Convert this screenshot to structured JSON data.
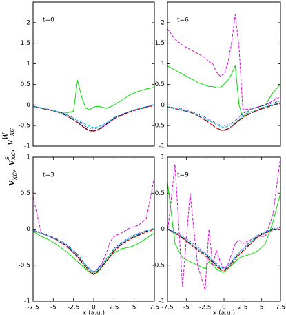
{
  "y_label": [
    "v",
    "xc",
    ", v",
    "s",
    "xc",
    ", v",
    "W",
    "xc"
  ],
  "chart_data": [
    {
      "type": "line",
      "annotation": "t=0",
      "xlim": [
        -7.5,
        7.5
      ],
      "ylim": [
        -1,
        2.5
      ],
      "yticks": [
        -1,
        -0.5,
        0,
        0.5,
        1,
        1.5,
        2
      ],
      "x": [
        -7.5,
        -6.5,
        -5.5,
        -4.5,
        -3.5,
        -2.5,
        -2,
        -1.5,
        -1,
        -0.5,
        0,
        0.5,
        1,
        1.5,
        2,
        2.5,
        3.5,
        4.5,
        5.5,
        6.5,
        7.5
      ],
      "series": [
        {
          "color": "#00dd00",
          "style": "solid",
          "values": [
            -0.03,
            -0.08,
            -0.12,
            -0.17,
            -0.2,
            -0.15,
            0.6,
            0.2,
            -0.07,
            -0.12,
            -0.05,
            -0.03,
            -0.05,
            -0.08,
            -0.05,
            0.0,
            0.12,
            0.25,
            0.33,
            0.39,
            0.43
          ]
        },
        {
          "color": "#dd00dd",
          "style": "dashed",
          "values": [
            -0.03,
            -0.08,
            -0.12,
            -0.17,
            -0.25,
            -0.36,
            -0.42,
            -0.5,
            -0.57,
            -0.62,
            -0.63,
            -0.6,
            -0.55,
            -0.48,
            -0.41,
            -0.33,
            -0.24,
            -0.16,
            -0.1,
            -0.05,
            0.0
          ]
        },
        {
          "color": "#000000",
          "style": "dashdot",
          "values": [
            -0.03,
            -0.08,
            -0.12,
            -0.17,
            -0.25,
            -0.36,
            -0.42,
            -0.5,
            -0.57,
            -0.62,
            -0.63,
            -0.6,
            -0.55,
            -0.48,
            -0.41,
            -0.33,
            -0.24,
            -0.16,
            -0.1,
            -0.05,
            0.0
          ]
        },
        {
          "color": "#ee0000",
          "style": "dashed",
          "values": [
            -0.03,
            -0.08,
            -0.12,
            -0.17,
            -0.25,
            -0.36,
            -0.43,
            -0.51,
            -0.58,
            -0.63,
            -0.64,
            -0.61,
            -0.56,
            -0.49,
            -0.42,
            -0.34,
            -0.25,
            -0.17,
            -0.11,
            -0.06,
            -0.01
          ]
        },
        {
          "color": "#0000ee",
          "style": "dotted",
          "values": [
            -0.03,
            -0.07,
            -0.11,
            -0.15,
            -0.22,
            -0.32,
            -0.38,
            -0.45,
            -0.52,
            -0.56,
            -0.58,
            -0.56,
            -0.52,
            -0.46,
            -0.4,
            -0.32,
            -0.23,
            -0.15,
            -0.09,
            -0.04,
            0.01
          ]
        },
        {
          "color": "#00cccc",
          "style": "dashed",
          "values": [
            -0.02,
            -0.07,
            -0.11,
            -0.16,
            -0.24,
            -0.33,
            -0.38,
            -0.42,
            -0.47,
            -0.52,
            -0.55,
            -0.53,
            -0.49,
            -0.44,
            -0.38,
            -0.3,
            -0.22,
            -0.15,
            -0.09,
            -0.04,
            0.0
          ]
        }
      ]
    },
    {
      "type": "line",
      "annotation": "t=6",
      "xlim": [
        -7.5,
        7.5
      ],
      "ylim": [
        -1,
        2.5
      ],
      "yticks": [
        -1,
        -0.5,
        0,
        0.5,
        1,
        1.5,
        2
      ],
      "x": [
        -7.5,
        -6.5,
        -5.5,
        -4.5,
        -3.5,
        -2.5,
        -2,
        -1.5,
        -1,
        -0.5,
        0,
        0.5,
        1,
        1.5,
        2,
        2.5,
        3.5,
        4.5,
        5.5,
        6.5,
        7.5
      ],
      "series": [
        {
          "color": "#00dd00",
          "style": "solid",
          "values": [
            0.95,
            0.85,
            0.75,
            0.65,
            0.55,
            0.48,
            0.45,
            0.45,
            0.42,
            0.42,
            0.5,
            0.6,
            0.75,
            0.95,
            0.0,
            -0.3,
            -0.1,
            -0.05,
            0.0,
            0.3,
            0.5
          ]
        },
        {
          "color": "#dd00dd",
          "style": "dashed",
          "values": [
            1.85,
            1.6,
            1.45,
            1.35,
            1.25,
            1.15,
            1.05,
            1.0,
            0.8,
            0.7,
            0.75,
            1.0,
            1.5,
            2.2,
            1.4,
            -0.1,
            -0.1,
            -0.05,
            0.0,
            0.1,
            0.2
          ]
        },
        {
          "color": "#000000",
          "style": "dashdot",
          "values": [
            -0.05,
            -0.09,
            -0.13,
            -0.18,
            -0.26,
            -0.36,
            -0.42,
            -0.49,
            -0.55,
            -0.6,
            -0.61,
            -0.58,
            -0.52,
            -0.45,
            -0.37,
            -0.3,
            -0.2,
            -0.12,
            -0.06,
            0.0,
            0.05
          ]
        },
        {
          "color": "#ee0000",
          "style": "dashed",
          "values": [
            -0.05,
            -0.09,
            -0.13,
            -0.18,
            -0.26,
            -0.37,
            -0.43,
            -0.5,
            -0.56,
            -0.61,
            -0.62,
            -0.59,
            -0.53,
            -0.46,
            -0.38,
            -0.31,
            -0.21,
            -0.13,
            -0.07,
            -0.01,
            0.04
          ]
        },
        {
          "color": "#0000ee",
          "style": "dotted",
          "values": [
            -0.04,
            -0.07,
            -0.1,
            -0.15,
            -0.22,
            -0.3,
            -0.35,
            -0.4,
            -0.45,
            -0.49,
            -0.5,
            -0.48,
            -0.44,
            -0.38,
            -0.3,
            -0.2,
            -0.12,
            -0.05,
            0.0,
            0.05,
            0.1
          ]
        },
        {
          "color": "#00cccc",
          "style": "dashed",
          "values": [
            -0.04,
            -0.08,
            -0.12,
            -0.17,
            -0.24,
            -0.33,
            -0.38,
            -0.43,
            -0.48,
            -0.52,
            -0.54,
            -0.52,
            -0.48,
            -0.42,
            -0.35,
            -0.27,
            -0.17,
            -0.1,
            -0.04,
            0.01,
            0.06
          ]
        }
      ]
    },
    {
      "type": "line",
      "annotation": "t=3",
      "xlim": [
        -7.5,
        7.5
      ],
      "ylim": [
        -1,
        1
      ],
      "yticks": [
        -1,
        -0.5,
        0,
        0.5,
        1
      ],
      "xticks": [
        -7.5,
        -5,
        -2.5,
        0,
        2.5,
        5,
        7.5
      ],
      "xlabel": "x (a.u.)",
      "x": [
        -7.5,
        -6.5,
        -5.5,
        -4.5,
        -3.5,
        -2.5,
        -2,
        -1.5,
        -1,
        -0.5,
        0,
        0.5,
        1,
        1.5,
        2,
        2.5,
        3.5,
        4.5,
        5.5,
        6.5,
        7.5
      ],
      "series": [
        {
          "color": "#00dd00",
          "style": "solid",
          "values": [
            -0.03,
            -0.1,
            -0.15,
            -0.22,
            -0.3,
            -0.4,
            -0.45,
            -0.5,
            -0.55,
            -0.6,
            -0.63,
            -0.6,
            -0.52,
            -0.45,
            -0.38,
            -0.33,
            -0.27,
            -0.25,
            -0.2,
            -0.13,
            -0.05
          ]
        },
        {
          "color": "#dd00dd",
          "style": "dashed",
          "values": [
            0.45,
            -0.05,
            -0.1,
            -0.15,
            -0.22,
            -0.3,
            -0.37,
            -0.43,
            -0.5,
            -0.56,
            -0.6,
            -0.55,
            -0.48,
            -0.35,
            -0.18,
            -0.1,
            -0.05,
            0.02,
            0.05,
            0.15,
            0.72
          ]
        },
        {
          "color": "#000000",
          "style": "dashdot",
          "values": [
            -0.02,
            -0.06,
            -0.1,
            -0.15,
            -0.22,
            -0.32,
            -0.38,
            -0.45,
            -0.52,
            -0.58,
            -0.62,
            -0.58,
            -0.52,
            -0.45,
            -0.38,
            -0.3,
            -0.2,
            -0.13,
            -0.08,
            -0.03,
            0.0
          ]
        },
        {
          "color": "#ee0000",
          "style": "dashed",
          "values": [
            -0.02,
            -0.06,
            -0.1,
            -0.16,
            -0.23,
            -0.33,
            -0.39,
            -0.46,
            -0.53,
            -0.59,
            -0.63,
            -0.59,
            -0.53,
            -0.46,
            -0.39,
            -0.31,
            -0.21,
            -0.14,
            -0.09,
            -0.04,
            -0.01
          ]
        },
        {
          "color": "#0000ee",
          "style": "dotted",
          "values": [
            -0.01,
            -0.05,
            -0.09,
            -0.14,
            -0.2,
            -0.29,
            -0.35,
            -0.42,
            -0.49,
            -0.55,
            -0.59,
            -0.55,
            -0.49,
            -0.42,
            -0.35,
            -0.27,
            -0.18,
            -0.11,
            -0.06,
            -0.02,
            0.01
          ]
        },
        {
          "color": "#00cccc",
          "style": "dashed",
          "values": [
            -0.02,
            -0.06,
            -0.1,
            -0.15,
            -0.21,
            -0.3,
            -0.36,
            -0.43,
            -0.5,
            -0.56,
            -0.6,
            -0.56,
            -0.5,
            -0.43,
            -0.36,
            -0.28,
            -0.19,
            -0.12,
            -0.07,
            -0.02,
            0.0
          ]
        }
      ]
    },
    {
      "type": "line",
      "annotation": "t=9",
      "xlim": [
        -7.5,
        7.5
      ],
      "ylim": [
        -1,
        1
      ],
      "yticks": [
        -1,
        -0.5,
        0,
        0.5,
        1
      ],
      "xticks": [
        -7.5,
        -5,
        -2.5,
        0,
        2.5,
        5,
        7.5
      ],
      "xlabel": "x (a.u.)",
      "x": [
        -7.5,
        -6.5,
        -5.5,
        -4.5,
        -3.5,
        -2.5,
        -2,
        -1.5,
        -1,
        -0.5,
        0,
        0.5,
        1,
        1.5,
        2,
        2.5,
        3.5,
        4.5,
        5.5,
        6.5,
        7.5
      ],
      "series": [
        {
          "color": "#00dd00",
          "style": "solid",
          "values": [
            0.65,
            -0.2,
            -0.4,
            -0.45,
            -0.5,
            -0.55,
            -0.45,
            -0.5,
            -0.55,
            -0.58,
            -0.6,
            -0.55,
            -0.5,
            -0.45,
            -0.4,
            -0.38,
            -0.35,
            -0.3,
            -0.2,
            0.1,
            0.5
          ]
        },
        {
          "color": "#dd00dd",
          "style": "dashed",
          "values": [
            -0.05,
            0.9,
            -0.8,
            0.5,
            -0.5,
            -0.85,
            0.0,
            -0.5,
            -0.3,
            -0.45,
            -0.55,
            -0.5,
            -0.35,
            -0.2,
            -0.15,
            -0.2,
            -0.15,
            -0.1,
            -0.1,
            0.2,
            1.0
          ]
        },
        {
          "color": "#000000",
          "style": "dashdot",
          "values": [
            0.0,
            -0.05,
            -0.12,
            -0.2,
            -0.28,
            -0.35,
            -0.4,
            -0.45,
            -0.5,
            -0.55,
            -0.57,
            -0.53,
            -0.47,
            -0.4,
            -0.35,
            -0.3,
            -0.2,
            -0.1,
            -0.05,
            0.0,
            0.0
          ]
        },
        {
          "color": "#ee0000",
          "style": "dashed",
          "values": [
            0.0,
            -0.06,
            -0.13,
            -0.21,
            -0.29,
            -0.37,
            -0.42,
            -0.47,
            -0.52,
            -0.56,
            -0.58,
            -0.55,
            -0.49,
            -0.42,
            -0.36,
            -0.31,
            -0.21,
            -0.11,
            -0.06,
            -0.01,
            0.0
          ]
        },
        {
          "color": "#0000ee",
          "style": "dotted",
          "values": [
            0.0,
            -0.04,
            -0.1,
            -0.17,
            -0.25,
            -0.33,
            -0.38,
            -0.43,
            -0.48,
            -0.52,
            -0.54,
            -0.51,
            -0.45,
            -0.38,
            -0.32,
            -0.27,
            -0.17,
            -0.08,
            -0.03,
            0.01,
            0.02
          ]
        },
        {
          "color": "#00cccc",
          "style": "dashed",
          "values": [
            0.0,
            -0.05,
            -0.11,
            -0.19,
            -0.27,
            -0.34,
            -0.39,
            -0.44,
            -0.49,
            -0.53,
            -0.55,
            -0.52,
            -0.46,
            -0.39,
            -0.33,
            -0.28,
            -0.18,
            -0.09,
            -0.04,
            0.0,
            0.01
          ]
        }
      ]
    }
  ]
}
